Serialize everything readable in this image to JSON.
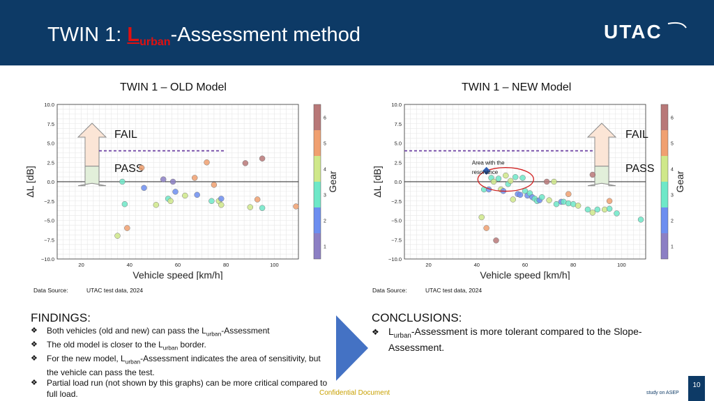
{
  "header": {
    "title_prefix": "TWIN 1: ",
    "title_L": "L",
    "title_sub": "urban",
    "title_suffix": "-Assessment method",
    "logo_text": "UTAC"
  },
  "colors": {
    "header_bg": "#0d3a66",
    "accent_red": "#e01010",
    "footer_gold": "#c8a000"
  },
  "panels": [
    {
      "title": "TWIN 1 – OLD Model",
      "fail_label": "FAIL",
      "pass_label": "PASS",
      "data_source_label": "Data Source:",
      "data_source_value": "UTAC test data, 2024"
    },
    {
      "title": "TWIN 1 – NEW Model",
      "fail_label": "FAIL",
      "pass_label": "PASS",
      "annotation": [
        "Area with the",
        "resonance"
      ],
      "data_source_label": "Data Source:",
      "data_source_value": "UTAC test data, 2024"
    }
  ],
  "chart_data": [
    {
      "type": "scatter",
      "title": "",
      "xlabel": "Vehicle speed [km/h]",
      "ylabel": "ΔL [dB]",
      "colorbar_label": "Gear",
      "xlim": [
        10,
        110
      ],
      "ylim": [
        -10,
        10
      ],
      "xticks": [
        20,
        40,
        60,
        80,
        100
      ],
      "yticks": [
        "10.0",
        "7.5",
        "5.0",
        "2.5",
        "0.0",
        "−2.5",
        "−5.0",
        "−7.5",
        "−10.0"
      ],
      "colorbar_ticks": [
        "6",
        "5",
        "4",
        "3",
        "2",
        "1"
      ],
      "grid": true,
      "hline_y": 0,
      "points": [
        {
          "x": 35,
          "y": -7.0,
          "gear": 4
        },
        {
          "x": 37,
          "y": 0.0,
          "gear": 3
        },
        {
          "x": 38,
          "y": -2.9,
          "gear": 3
        },
        {
          "x": 39,
          "y": -6.0,
          "gear": 5
        },
        {
          "x": 45,
          "y": 1.8,
          "gear": 5
        },
        {
          "x": 46,
          "y": -0.8,
          "gear": 2
        },
        {
          "x": 51,
          "y": -3.0,
          "gear": 4
        },
        {
          "x": 54,
          "y": 0.3,
          "gear": 1
        },
        {
          "x": 56,
          "y": -2.2,
          "gear": 3
        },
        {
          "x": 57,
          "y": -2.5,
          "gear": 4
        },
        {
          "x": 58,
          "y": 0.0,
          "gear": 1
        },
        {
          "x": 59,
          "y": -1.3,
          "gear": 2
        },
        {
          "x": 63,
          "y": -1.8,
          "gear": 4
        },
        {
          "x": 67,
          "y": 0.5,
          "gear": 5
        },
        {
          "x": 68,
          "y": -1.7,
          "gear": 2
        },
        {
          "x": 72,
          "y": 2.5,
          "gear": 5
        },
        {
          "x": 74,
          "y": -2.5,
          "gear": 3
        },
        {
          "x": 75,
          "y": -0.4,
          "gear": 5
        },
        {
          "x": 77,
          "y": -2.5,
          "gear": 4
        },
        {
          "x": 78,
          "y": -2.2,
          "gear": 2
        },
        {
          "x": 78,
          "y": -3.0,
          "gear": 4
        },
        {
          "x": 88,
          "y": 2.4,
          "gear": 6
        },
        {
          "x": 90,
          "y": -3.3,
          "gear": 4
        },
        {
          "x": 93,
          "y": -2.3,
          "gear": 5
        },
        {
          "x": 95,
          "y": 3.0,
          "gear": 6
        },
        {
          "x": 95,
          "y": -3.4,
          "gear": 3
        },
        {
          "x": 109,
          "y": -3.2,
          "gear": 5
        }
      ]
    },
    {
      "type": "scatter",
      "title": "",
      "xlabel": "Vehicle speed [km/h]",
      "ylabel": "ΔL [dB]",
      "colorbar_label": "Gear",
      "xlim": [
        10,
        110
      ],
      "ylim": [
        -10,
        10
      ],
      "xticks": [
        20,
        40,
        60,
        80,
        100
      ],
      "yticks": [
        "10.0",
        "7.5",
        "5.0",
        "2.5",
        "0.0",
        "−2.5",
        "−5.0",
        "−7.5",
        "−10.0"
      ],
      "colorbar_ticks": [
        "6",
        "5",
        "4",
        "3",
        "2",
        "1"
      ],
      "grid": true,
      "hline_y": 0,
      "points": [
        {
          "x": 42,
          "y": -4.6,
          "gear": 4
        },
        {
          "x": 43,
          "y": -1.0,
          "gear": 3
        },
        {
          "x": 44,
          "y": -6.0,
          "gear": 5
        },
        {
          "x": 45,
          "y": -1.0,
          "gear": 2
        },
        {
          "x": 46,
          "y": 0.5,
          "gear": 3
        },
        {
          "x": 47,
          "y": 0.0,
          "gear": 4
        },
        {
          "x": 48,
          "y": -7.6,
          "gear": 6
        },
        {
          "x": 49,
          "y": 0.4,
          "gear": 3
        },
        {
          "x": 50,
          "y": -1.0,
          "gear": 4
        },
        {
          "x": 51,
          "y": -1.2,
          "gear": 2
        },
        {
          "x": 52,
          "y": 0.8,
          "gear": 4
        },
        {
          "x": 53,
          "y": -0.3,
          "gear": 3
        },
        {
          "x": 54,
          "y": 0.1,
          "gear": 4
        },
        {
          "x": 55,
          "y": -2.3,
          "gear": 4
        },
        {
          "x": 56,
          "y": 0.6,
          "gear": 3
        },
        {
          "x": 57,
          "y": -1.6,
          "gear": 2
        },
        {
          "x": 58,
          "y": -1.7,
          "gear": 2
        },
        {
          "x": 59,
          "y": 0.5,
          "gear": 3
        },
        {
          "x": 60,
          "y": -1.2,
          "gear": 3
        },
        {
          "x": 61,
          "y": -1.8,
          "gear": 2
        },
        {
          "x": 62,
          "y": -1.5,
          "gear": 3
        },
        {
          "x": 63,
          "y": -2.0,
          "gear": 2
        },
        {
          "x": 64,
          "y": -2.2,
          "gear": 3
        },
        {
          "x": 65,
          "y": -2.5,
          "gear": 3
        },
        {
          "x": 66,
          "y": -2.4,
          "gear": 2
        },
        {
          "x": 67,
          "y": -2.0,
          "gear": 3
        },
        {
          "x": 69,
          "y": 0.0,
          "gear": 6
        },
        {
          "x": 70,
          "y": -2.4,
          "gear": 4
        },
        {
          "x": 72,
          "y": 0.0,
          "gear": 4
        },
        {
          "x": 73,
          "y": -2.9,
          "gear": 3
        },
        {
          "x": 75,
          "y": -2.6,
          "gear": 2
        },
        {
          "x": 76,
          "y": -2.6,
          "gear": 3
        },
        {
          "x": 78,
          "y": -1.6,
          "gear": 5
        },
        {
          "x": 78,
          "y": -2.8,
          "gear": 3
        },
        {
          "x": 80,
          "y": -2.9,
          "gear": 3
        },
        {
          "x": 82,
          "y": -3.1,
          "gear": 4
        },
        {
          "x": 86,
          "y": -3.6,
          "gear": 3
        },
        {
          "x": 88,
          "y": 0.9,
          "gear": 6
        },
        {
          "x": 88,
          "y": -4.0,
          "gear": 4
        },
        {
          "x": 90,
          "y": -3.6,
          "gear": 3
        },
        {
          "x": 93,
          "y": -3.6,
          "gear": 4
        },
        {
          "x": 95,
          "y": -2.5,
          "gear": 5
        },
        {
          "x": 95,
          "y": -3.5,
          "gear": 3
        },
        {
          "x": 98,
          "y": -4.1,
          "gear": 3
        },
        {
          "x": 108,
          "y": -4.9,
          "gear": 3
        }
      ],
      "highlight_point": {
        "x": 44,
        "y": 1.4
      }
    }
  ],
  "findings": {
    "title": "FINDINGS:",
    "items": [
      [
        "Both vehicles (old and new) can pass the L",
        "urban",
        "-Assessment"
      ],
      [
        "The old model is closer to the L",
        "urban",
        " border."
      ],
      [
        "For the new model, L",
        "urban",
        "-Assessment indicates the area of sensitivity, but the vehicle can pass the test."
      ],
      [
        "Partial load run (not shown by this graphs) can be more critical compared to full load.",
        "",
        ""
      ]
    ]
  },
  "conclusions": {
    "title": "CONCLUSIONS:",
    "items": [
      [
        "L",
        "urban",
        "-Assessment is more tolerant compared to the Slope-Assessment."
      ]
    ]
  },
  "footer": {
    "confidential": "Confidential Document",
    "study": "study on ASEP",
    "page_number": "10"
  }
}
